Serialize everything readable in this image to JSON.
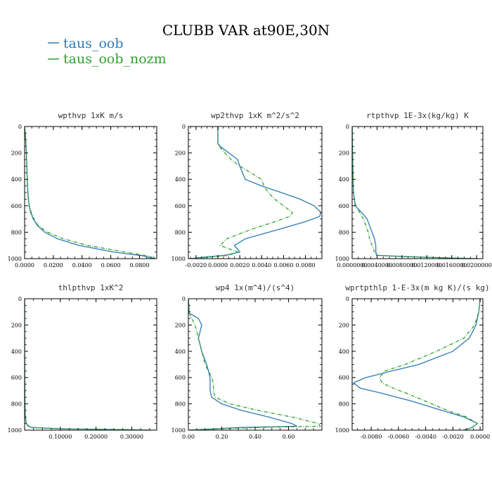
{
  "figure": {
    "title": "CLUBB VAR at90E,30N",
    "legend": [
      {
        "name": "taus_oob",
        "color": "#2e7bb5",
        "dash": "solid"
      },
      {
        "name": "taus_oob_nozm",
        "color": "#2ea02e",
        "dash": "dash"
      }
    ]
  },
  "chart_data": [
    {
      "type": "line",
      "title": "wpthvp   1xK m/s",
      "xlim": [
        0,
        0.092
      ],
      "ylim": [
        0,
        1000
      ],
      "y_inverted": true,
      "xticks": [
        0,
        0.02,
        0.04,
        0.06,
        0.08
      ],
      "xtick_labels": [
        "0.0000",
        "0.0200",
        "0.0400",
        "0.0600",
        "0.0800"
      ],
      "yticks": [
        0,
        200,
        400,
        600,
        800,
        1000
      ],
      "ytick_labels": [
        "0",
        "200",
        "400",
        "600",
        "800",
        "1000"
      ],
      "y": [
        0,
        100,
        200,
        300,
        400,
        500,
        550,
        600,
        650,
        700,
        750,
        800,
        850,
        900,
        950,
        980,
        1000
      ],
      "series": [
        {
          "name": "taus_oob",
          "values": [
            0,
            0.0008,
            0.0012,
            0.0015,
            0.0018,
            0.0022,
            0.0026,
            0.0032,
            0.0042,
            0.006,
            0.009,
            0.014,
            0.023,
            0.038,
            0.062,
            0.083,
            0.09
          ]
        },
        {
          "name": "taus_oob_nozm",
          "values": [
            0,
            0.0008,
            0.0012,
            0.0016,
            0.0019,
            0.0024,
            0.0028,
            0.0034,
            0.0046,
            0.0065,
            0.0095,
            0.016,
            0.027,
            0.044,
            0.07,
            0.086,
            0.091
          ]
        }
      ]
    },
    {
      "type": "line",
      "title": "wp2thvp   1xK m^2/s^2",
      "xlim": [
        -0.0027,
        0.0095
      ],
      "ylim": [
        0,
        1000
      ],
      "y_inverted": true,
      "xticks": [
        -0.002,
        0,
        0.002,
        0.004,
        0.006,
        0.008
      ],
      "xtick_labels": [
        "-0.0020",
        "0.0000",
        "0.0020",
        "0.0040",
        "0.0060",
        "0.0080"
      ],
      "yticks": [
        0,
        200,
        400,
        600,
        800,
        1000
      ],
      "ytick_labels": [
        "0",
        "200",
        "400",
        "600",
        "800",
        "1000"
      ],
      "y": [
        0,
        130,
        150,
        250,
        300,
        400,
        450,
        500,
        550,
        600,
        650,
        680,
        720,
        780,
        850,
        900,
        950,
        975,
        990,
        1000
      ],
      "series": [
        {
          "name": "taus_oob",
          "values": [
            0,
            0,
            0.0002,
            0.0018,
            0.002,
            0.0025,
            0.004,
            0.0058,
            0.0075,
            0.0088,
            0.0094,
            0.0093,
            0.008,
            0.0055,
            0.0025,
            0.0015,
            0.002,
            0.0006,
            -0.0015,
            -0.0025
          ]
        },
        {
          "name": "taus_oob_nozm",
          "values": [
            0,
            0,
            0.0001,
            0.0012,
            0.002,
            0.004,
            0.0042,
            0.0046,
            0.0052,
            0.006,
            0.0068,
            0.0066,
            0.0052,
            0.003,
            0.0008,
            0.0002,
            0.0018,
            0.001,
            -0.001,
            -0.0024
          ]
        }
      ]
    },
    {
      "type": "line",
      "title": "rtpthvp   1E-3x(kg/kg) K",
      "xlim": [
        0,
        0.021
      ],
      "ylim": [
        0,
        1000
      ],
      "y_inverted": true,
      "xticks": [
        0,
        0.004,
        0.008,
        0.012,
        0.016,
        0.02
      ],
      "xtick_labels": [
        "0.0000000",
        "0.0040000",
        "0.0080000",
        "0.0120000",
        "0.0160000",
        "0.0200000"
      ],
      "yticks": [
        0,
        200,
        400,
        600,
        800,
        1000
      ],
      "ytick_labels": [
        "0",
        "200",
        "400",
        "600",
        "800",
        "1000"
      ],
      "y": [
        0,
        300,
        500,
        600,
        650,
        700,
        750,
        800,
        850,
        900,
        950,
        975,
        985,
        995,
        1000
      ],
      "series": [
        {
          "name": "taus_oob",
          "values": [
            0,
            0.0001,
            0.0002,
            0.0005,
            0.0015,
            0.0024,
            0.0028,
            0.0032,
            0.0036,
            0.0038,
            0.0038,
            0.004,
            0.009,
            0.016,
            0.02
          ]
        },
        {
          "name": "taus_oob_nozm",
          "values": [
            0,
            0.0001,
            0.0002,
            0.0006,
            0.0012,
            0.0018,
            0.0022,
            0.0026,
            0.0028,
            0.0032,
            0.0036,
            0.0038,
            0.009,
            0.016,
            0.02
          ]
        }
      ]
    },
    {
      "type": "line",
      "title": "thlpthvp   1xK^2",
      "xlim": [
        0,
        0.37
      ],
      "ylim": [
        0,
        1000
      ],
      "y_inverted": true,
      "xticks": [
        0.1,
        0.2,
        0.3
      ],
      "xtick_labels": [
        "0.10000",
        "0.20000",
        "0.30000"
      ],
      "yticks": [
        0,
        200,
        400,
        600,
        800,
        1000
      ],
      "ytick_labels": [
        "0",
        "200",
        "400",
        "600",
        "800",
        "1000"
      ],
      "y": [
        0,
        400,
        700,
        800,
        900,
        950,
        970,
        980,
        990,
        995,
        1000
      ],
      "series": [
        {
          "name": "taus_oob",
          "values": [
            0,
            0,
            0.0005,
            0.001,
            0.002,
            0.005,
            0.01,
            0.02,
            0.1,
            0.25,
            0.36
          ]
        },
        {
          "name": "taus_oob_nozm",
          "values": [
            0,
            0,
            0.0005,
            0.001,
            0.002,
            0.005,
            0.012,
            0.025,
            0.12,
            0.27,
            0.365
          ]
        }
      ]
    },
    {
      "type": "line",
      "title": "wp4   1x(m^4)/(s^4)",
      "xlim": [
        0,
        0.8
      ],
      "ylim": [
        0,
        1000
      ],
      "y_inverted": true,
      "xticks": [
        0,
        0.2,
        0.4,
        0.6
      ],
      "xtick_labels": [
        "0.00",
        "0.20",
        "0.40",
        "0.60"
      ],
      "yticks": [
        0,
        200,
        400,
        600,
        800,
        1000
      ],
      "ytick_labels": [
        "0",
        "200",
        "400",
        "600",
        "800",
        "1000"
      ],
      "y": [
        0,
        110,
        150,
        200,
        300,
        400,
        500,
        600,
        650,
        700,
        750,
        800,
        850,
        900,
        950,
        970,
        980,
        1000
      ],
      "series": [
        {
          "name": "taus_oob",
          "values": [
            0,
            0.005,
            0.06,
            0.08,
            0.06,
            0.08,
            0.11,
            0.13,
            0.13,
            0.13,
            0.14,
            0.2,
            0.32,
            0.48,
            0.62,
            0.65,
            0.3,
            0
          ]
        },
        {
          "name": "taus_oob_nozm",
          "values": [
            0,
            0.005,
            0.02,
            0.04,
            0.06,
            0.08,
            0.1,
            0.14,
            0.15,
            0.15,
            0.16,
            0.25,
            0.42,
            0.62,
            0.78,
            0.79,
            0.4,
            0
          ]
        }
      ]
    },
    {
      "type": "line",
      "title": "wprtpthlp   1-E-3x(m kg K)/(s kg)",
      "xlim": [
        -0.0094,
        0.0002
      ],
      "ylim": [
        0,
        1000
      ],
      "y_inverted": true,
      "xticks": [
        -0.008,
        -0.006,
        -0.004,
        -0.002,
        0
      ],
      "xtick_labels": [
        "-0.0080",
        "-0.0060",
        "-0.0040",
        "-0.0020",
        "0.0000"
      ],
      "yticks": [
        0,
        200,
        400,
        600,
        800,
        1000
      ],
      "ytick_labels": [
        "0",
        "200",
        "400",
        "600",
        "800",
        "1000"
      ],
      "y": [
        0,
        100,
        200,
        300,
        400,
        500,
        550,
        600,
        640,
        680,
        720,
        780,
        850,
        900,
        950,
        980,
        1000
      ],
      "series": [
        {
          "name": "taus_oob",
          "values": [
            0,
            -0.0001,
            -0.0003,
            -0.0008,
            -0.002,
            -0.0045,
            -0.0065,
            -0.0084,
            -0.0093,
            -0.0088,
            -0.0072,
            -0.005,
            -0.0028,
            -0.0012,
            -0.0002,
            -0.0006,
            -0.0012
          ]
        },
        {
          "name": "taus_oob_nozm",
          "values": [
            0,
            -0.0001,
            -0.0004,
            -0.0012,
            -0.0032,
            -0.0055,
            -0.007,
            -0.0074,
            -0.0072,
            -0.0064,
            -0.0054,
            -0.004,
            -0.0024,
            -0.001,
            -0.0002,
            -0.0006,
            -0.0012
          ]
        }
      ]
    }
  ]
}
